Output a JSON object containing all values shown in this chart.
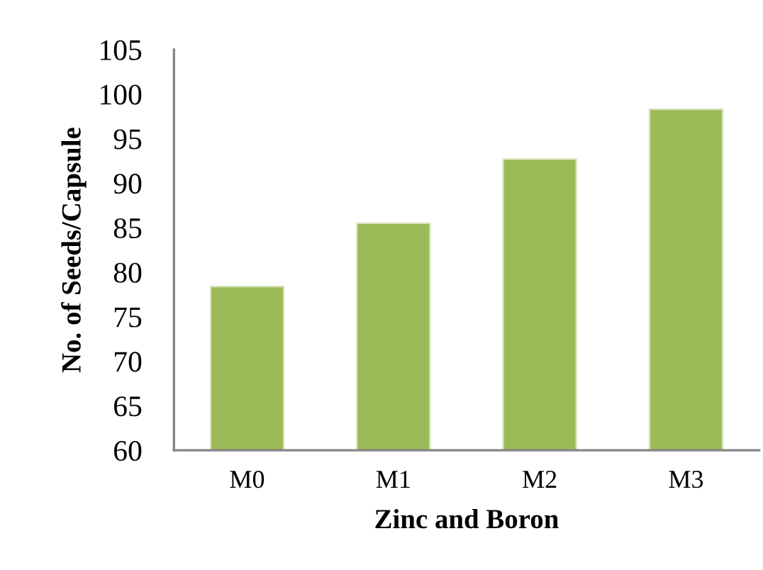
{
  "chart_data": {
    "type": "bar",
    "xlabel": "Zinc and Boron",
    "ylabel": "No. of Seeds/Capsule",
    "categories": [
      "M0",
      "M1",
      "M2",
      "M3"
    ],
    "values": [
      78.4,
      85.5,
      92.7,
      98.3
    ],
    "color": "#9bbb59",
    "ylim": [
      60,
      105
    ],
    "yticks": [
      60,
      65,
      70,
      75,
      80,
      85,
      90,
      95,
      100,
      105
    ],
    "grid": false,
    "legend": false
  }
}
